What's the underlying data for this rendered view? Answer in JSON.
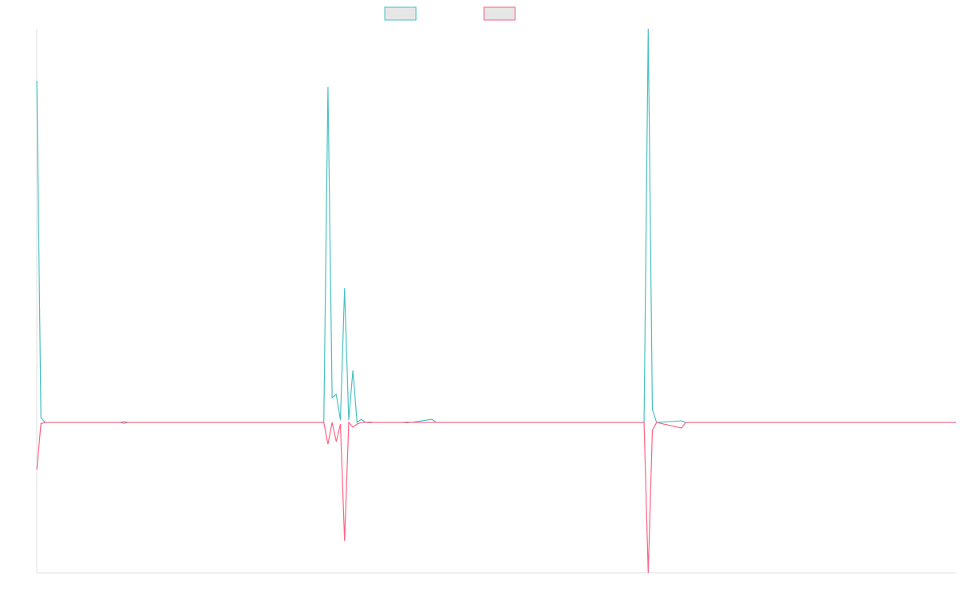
{
  "chart_data": {
    "type": "line",
    "x": [
      0,
      1,
      2,
      20,
      21,
      22,
      69,
      70,
      71,
      72,
      73,
      74,
      75,
      76,
      77,
      78,
      79,
      80,
      81,
      88,
      89,
      90,
      95,
      96,
      97,
      146,
      147,
      148,
      149,
      155,
      156,
      221
    ],
    "series": [
      {
        "color": "#4bc0c0",
        "values": [
          86.8,
          1.2,
          0,
          0,
          0.2,
          0,
          0,
          85.2,
          6.3,
          7.1,
          0.6,
          34.1,
          0.6,
          13.2,
          0,
          0.8,
          0,
          0.1,
          0,
          0,
          0.1,
          0,
          0.8,
          0,
          0,
          0,
          100,
          3.3,
          0,
          0.4,
          0,
          0
        ]
      },
      {
        "color": "#ff6384",
        "values": [
          -12.0,
          -0.3,
          0,
          0,
          -0.2,
          0,
          0,
          -5.5,
          0,
          -4.9,
          -0.4,
          -30.1,
          0,
          -1.2,
          -0.4,
          0,
          0,
          -0.1,
          0,
          0,
          -0.1,
          0,
          0,
          0,
          0,
          0,
          -38.2,
          -2.0,
          0,
          -1.4,
          0,
          0
        ]
      }
    ],
    "xlim": [
      0,
      221
    ],
    "ylim": [
      -38.2,
      100
    ]
  }
}
